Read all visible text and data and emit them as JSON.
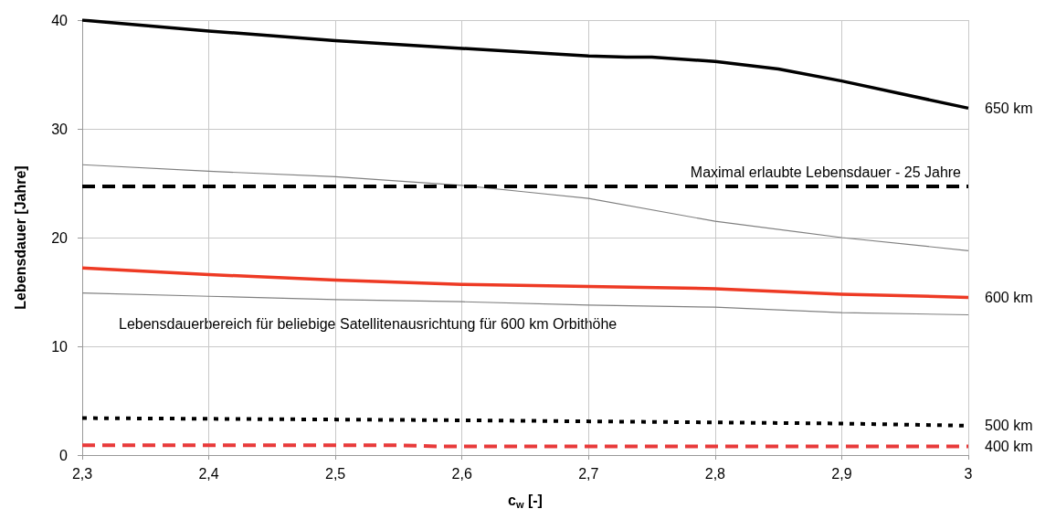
{
  "chart_data": {
    "type": "line",
    "xlabel": "c$_{w}$ [-]",
    "ylabel": "Lebensdauer [Jahre]",
    "xlim": [
      2.3,
      3
    ],
    "ylim": [
      0,
      40
    ],
    "xticks": [
      {
        "value": 2.3,
        "label": "2,3"
      },
      {
        "value": 2.4,
        "label": "2,4"
      },
      {
        "value": 2.5,
        "label": "2,5"
      },
      {
        "value": 2.6,
        "label": "2,6"
      },
      {
        "value": 2.7,
        "label": "2,7"
      },
      {
        "value": 2.8,
        "label": "2,8"
      },
      {
        "value": 2.9,
        "label": "2,9"
      },
      {
        "value": 3,
        "label": "3"
      }
    ],
    "yticks": [
      0,
      10,
      20,
      30,
      40
    ],
    "grid": true,
    "legend": false,
    "marker": "none",
    "series": [
      {
        "name": "650 km",
        "color": "#000000",
        "line_style": "solid",
        "x": [
          2.3,
          2.4,
          2.5,
          2.6,
          2.7,
          2.73,
          2.75,
          2.8,
          2.85,
          2.9,
          3.0
        ],
        "values": [
          40,
          39.0,
          38.1,
          37.4,
          36.7,
          36.6,
          36.6,
          36.2,
          35.5,
          34.4,
          31.9
        ]
      },
      {
        "color": "#808080",
        "line_style": "solid",
        "x": [
          2.3,
          2.4,
          2.5,
          2.6,
          2.65,
          2.7,
          2.8,
          2.9,
          3.0
        ],
        "values": [
          26.7,
          26.1,
          25.6,
          24.8,
          24.2,
          23.6,
          21.5,
          20.0,
          18.8
        ]
      },
      {
        "name": "600 km",
        "color": "#ee3a24",
        "line_style": "solid",
        "x": [
          2.3,
          2.4,
          2.5,
          2.6,
          2.7,
          2.8,
          2.9,
          3.0
        ],
        "values": [
          17.2,
          16.6,
          16.1,
          15.7,
          15.5,
          15.3,
          14.8,
          14.5
        ]
      },
      {
        "color": "#808080",
        "line_style": "solid",
        "x": [
          2.3,
          2.4,
          2.5,
          2.6,
          2.7,
          2.8,
          2.9,
          3.0
        ],
        "values": [
          14.9,
          14.6,
          14.3,
          14.1,
          13.8,
          13.6,
          13.1,
          12.9
        ]
      },
      {
        "name": "500 km",
        "color": "#000000",
        "line_style": "dotted",
        "x": [
          2.3,
          2.6,
          2.8,
          2.9,
          3.0
        ],
        "values": [
          3.4,
          3.2,
          3.0,
          2.9,
          2.7
        ]
      },
      {
        "name": "400 km",
        "color": "#e83a3a",
        "line_style": "dashed",
        "x": [
          2.3,
          2.55,
          2.58,
          3.0
        ],
        "values": [
          0.9,
          0.9,
          0.8,
          0.8
        ]
      }
    ],
    "ref_lines": [
      {
        "axis": "y",
        "value": 24.7,
        "label": "Maximal erlaubte Lebensdauer - 25 Jahre",
        "color": "#000000",
        "line_style": "dashed"
      }
    ],
    "annotations": [
      "Lebensdauerbereich für beliebige Satellitenausrichtung für 600 km Orbithöhe"
    ]
  }
}
